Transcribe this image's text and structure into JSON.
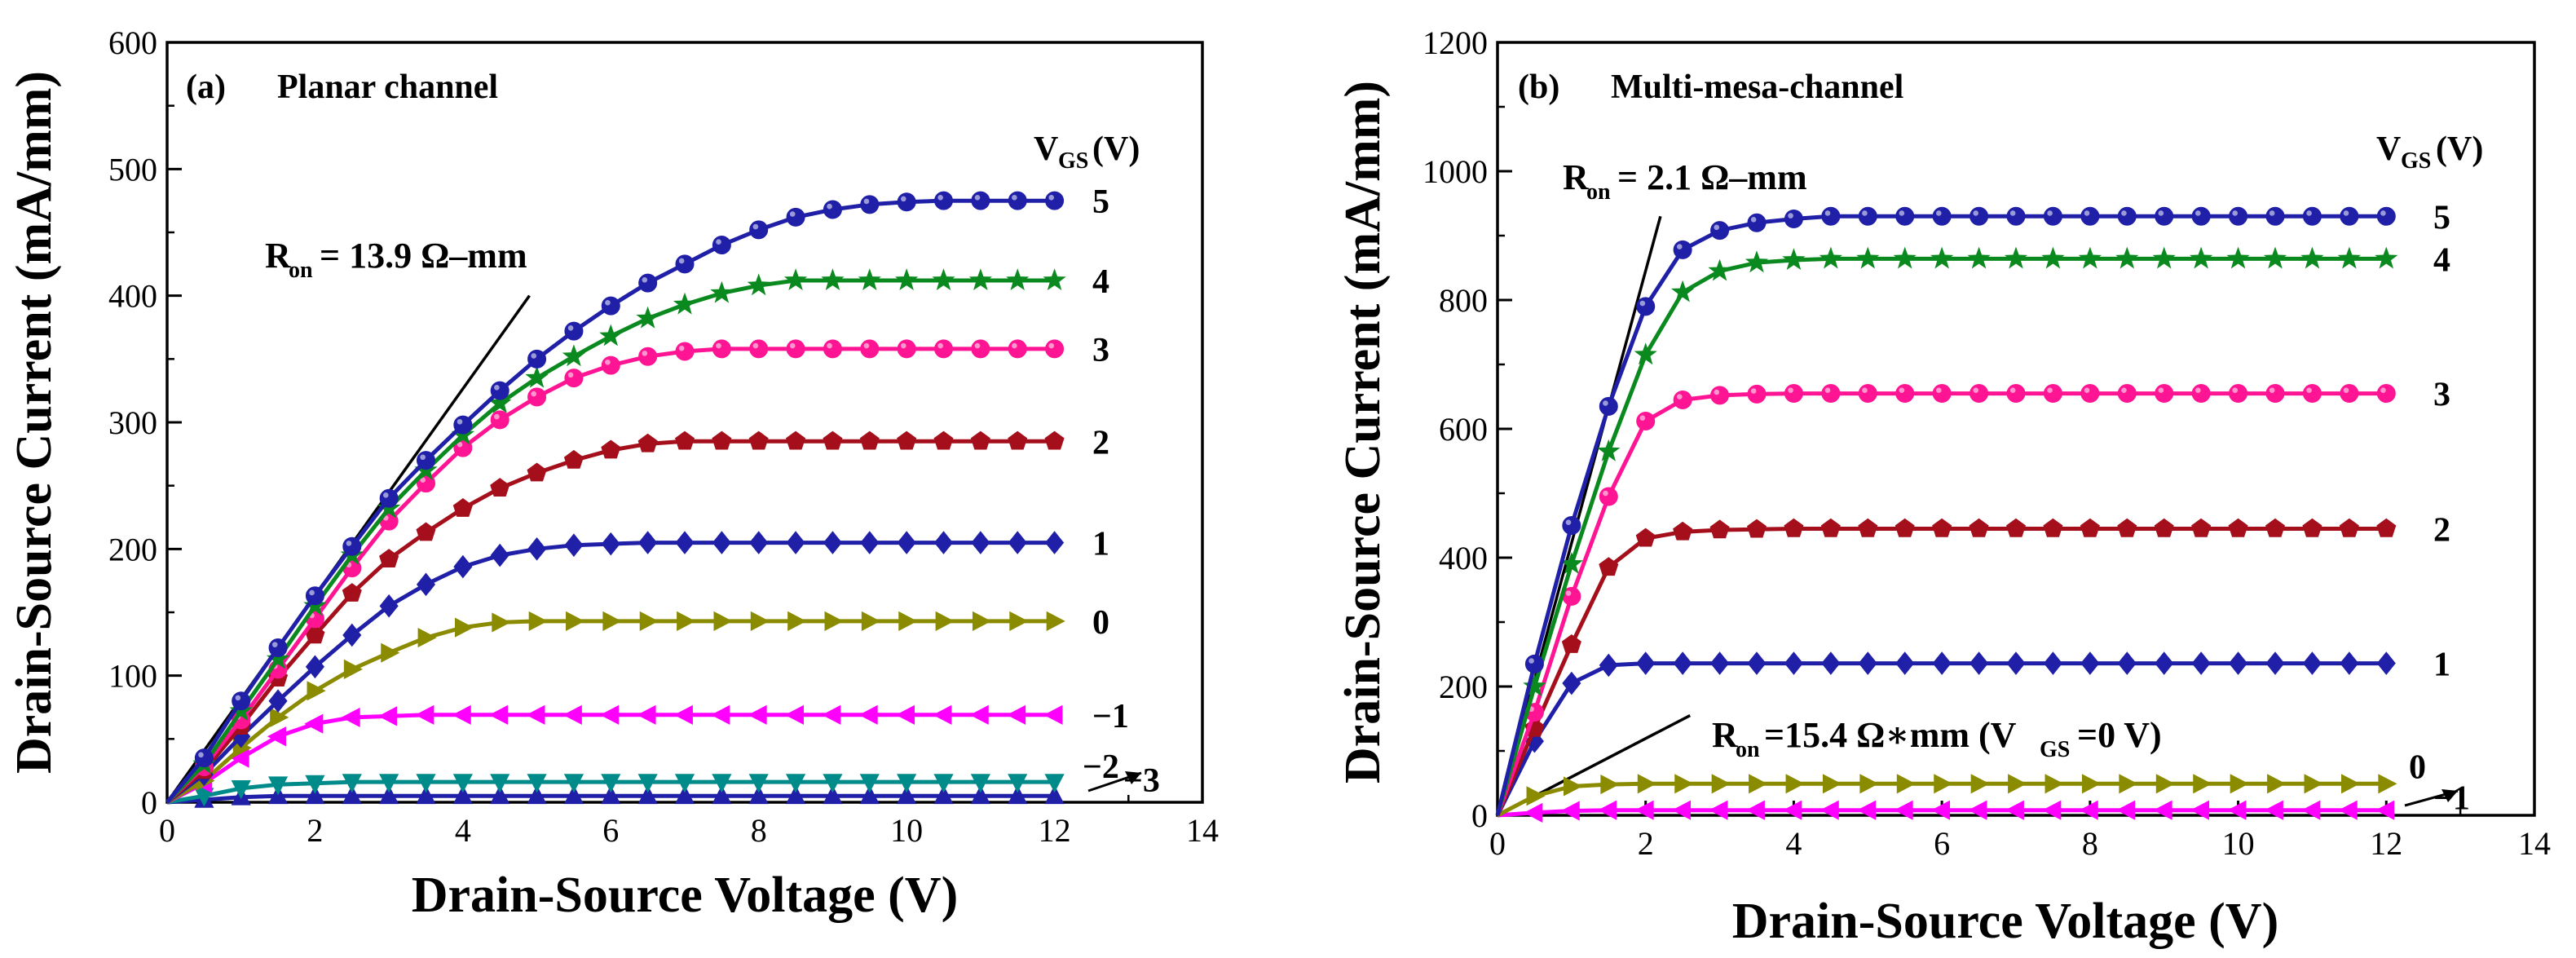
{
  "chart_data": [
    {
      "type": "line",
      "panel": "(a)",
      "title": "Planar channel",
      "xlabel": "Drain-Source Voltage (V)",
      "ylabel": "Drain-Source Current (mA/mm)",
      "xlim": [
        0,
        14
      ],
      "ylim": [
        0,
        600
      ],
      "xticks": [
        "0",
        "2",
        "4",
        "6",
        "8",
        "10",
        "12",
        "14"
      ],
      "yticks": [
        "0",
        "100",
        "200",
        "300",
        "400",
        "500",
        "600"
      ],
      "legend_title": "(V)",
      "legend_title_v": "V",
      "legend_title_sub": "GS",
      "annotation": {
        "label": "R",
        "sub": "on",
        "text": "= 13.9 Ω–mm",
        "line": [
          [
            0,
            0
          ],
          [
            4.9,
            400
          ]
        ]
      },
      "series": [
        {
          "name": "5",
          "label": "5",
          "marker": "circle",
          "color": "#1f1fa8",
          "x": [
            0,
            0.5,
            1,
            1.5,
            2,
            2.5,
            3,
            3.5,
            4,
            4.5,
            5,
            5.5,
            6,
            6.5,
            7,
            7.5,
            8,
            8.5,
            9,
            9.5,
            10,
            10.5,
            11,
            11.5,
            12
          ],
          "y": [
            0,
            35,
            80,
            122,
            163,
            202,
            240,
            270,
            298,
            325,
            350,
            372,
            392,
            410,
            425,
            440,
            452,
            462,
            468,
            472,
            474,
            475,
            475,
            475,
            475
          ]
        },
        {
          "name": "4",
          "label": "4",
          "marker": "star",
          "color": "#0a8a1e",
          "x": [
            0,
            0.5,
            1,
            1.5,
            2,
            2.5,
            3,
            3.5,
            4,
            4.5,
            5,
            5.5,
            6,
            6.5,
            7,
            7.5,
            8,
            8.5,
            9,
            9.5,
            10,
            10.5,
            11,
            11.5,
            12
          ],
          "y": [
            0,
            30,
            72,
            113,
            155,
            195,
            232,
            262,
            290,
            315,
            335,
            352,
            368,
            382,
            393,
            402,
            408,
            412,
            412,
            412,
            412,
            412,
            412,
            412,
            412
          ]
        },
        {
          "name": "3",
          "label": "3",
          "marker": "circle",
          "color": "#ff1493",
          "x": [
            0,
            0.5,
            1,
            1.5,
            2,
            2.5,
            3,
            3.5,
            4,
            4.5,
            5,
            5.5,
            6,
            6.5,
            7,
            7.5,
            8,
            8.5,
            9,
            9.5,
            10,
            10.5,
            11,
            11.5,
            12
          ],
          "y": [
            0,
            28,
            65,
            105,
            145,
            185,
            222,
            252,
            280,
            302,
            320,
            335,
            345,
            352,
            356,
            358,
            358,
            358,
            358,
            358,
            358,
            358,
            358,
            358,
            358
          ]
        },
        {
          "name": "2",
          "label": "2",
          "marker": "pentagon",
          "color": "#a50f1b",
          "x": [
            0,
            0.5,
            1,
            1.5,
            2,
            2.5,
            3,
            3.5,
            4,
            4.5,
            5,
            5.5,
            6,
            6.5,
            7,
            7.5,
            8,
            8.5,
            9,
            9.5,
            10,
            10.5,
            11,
            11.5,
            12
          ],
          "y": [
            0,
            25,
            60,
            98,
            132,
            165,
            192,
            213,
            232,
            248,
            260,
            270,
            278,
            283,
            285,
            285,
            285,
            285,
            285,
            285,
            285,
            285,
            285,
            285,
            285
          ]
        },
        {
          "name": "1",
          "label": "1",
          "marker": "diamond",
          "color": "#1f1fa8",
          "x": [
            0,
            0.5,
            1,
            1.5,
            2,
            2.5,
            3,
            3.5,
            4,
            4.5,
            5,
            5.5,
            6,
            6.5,
            7,
            7.5,
            8,
            8.5,
            9,
            9.5,
            10,
            10.5,
            11,
            11.5,
            12
          ],
          "y": [
            0,
            22,
            52,
            80,
            107,
            132,
            155,
            172,
            186,
            195,
            200,
            203,
            204,
            205,
            205,
            205,
            205,
            205,
            205,
            205,
            205,
            205,
            205,
            205,
            205
          ]
        },
        {
          "name": "0",
          "label": "0",
          "marker": "triangle-right",
          "color": "#8b8b00",
          "x": [
            0,
            0.5,
            1,
            1.5,
            2,
            2.5,
            3,
            3.5,
            4,
            4.5,
            5,
            5.5,
            6,
            6.5,
            7,
            7.5,
            8,
            8.5,
            9,
            9.5,
            10,
            10.5,
            11,
            11.5,
            12
          ],
          "y": [
            0,
            17,
            43,
            67,
            88,
            105,
            118,
            130,
            138,
            142,
            143,
            143,
            143,
            143,
            143,
            143,
            143,
            143,
            143,
            143,
            143,
            143,
            143,
            143,
            143
          ]
        },
        {
          "name": "-1",
          "label": "−1",
          "marker": "triangle-left",
          "color": "#ff00ff",
          "x": [
            0,
            0.5,
            1,
            1.5,
            2,
            2.5,
            3,
            3.5,
            4,
            4.5,
            5,
            5.5,
            6,
            6.5,
            7,
            7.5,
            8,
            8.5,
            9,
            9.5,
            10,
            10.5,
            11,
            11.5,
            12
          ],
          "y": [
            0,
            15,
            35,
            52,
            62,
            67,
            68,
            69,
            69,
            69,
            69,
            69,
            69,
            69,
            69,
            69,
            69,
            69,
            69,
            69,
            69,
            69,
            69,
            69,
            69
          ]
        },
        {
          "name": "-2",
          "label": "−2",
          "marker": "triangle-down",
          "color": "#008b8b",
          "x": [
            0,
            0.5,
            1,
            1.5,
            2,
            2.5,
            3,
            3.5,
            4,
            4.5,
            5,
            5.5,
            6,
            6.5,
            7,
            7.5,
            8,
            8.5,
            9,
            9.5,
            10,
            10.5,
            11,
            11.5,
            12
          ],
          "y": [
            0,
            5,
            11,
            14,
            15,
            16,
            16,
            16,
            16,
            16,
            16,
            16,
            16,
            16,
            16,
            16,
            16,
            16,
            16,
            16,
            16,
            16,
            16,
            16,
            16
          ]
        },
        {
          "name": "-3",
          "label": "−3",
          "marker": "triangle-up",
          "color": "#1f1fa8",
          "x": [
            0,
            0.5,
            1,
            1.5,
            2,
            2.5,
            3,
            3.5,
            4,
            4.5,
            5,
            5.5,
            6,
            6.5,
            7,
            7.5,
            8,
            8.5,
            9,
            9.5,
            10,
            10.5,
            11,
            11.5,
            12
          ],
          "y": [
            0,
            2,
            4,
            5,
            5,
            5,
            5,
            5,
            5,
            5,
            5,
            5,
            5,
            5,
            5,
            5,
            5,
            5,
            5,
            5,
            5,
            5,
            5,
            5,
            5
          ]
        }
      ]
    },
    {
      "type": "line",
      "panel": "(b)",
      "title": "Multi-mesa-channel",
      "xlabel": "Drain-Source Voltage (V)",
      "ylabel": "Drain-Source Current (mA/mm)",
      "xlim": [
        0,
        14
      ],
      "ylim": [
        0,
        1200
      ],
      "xticks": [
        "0",
        "2",
        "4",
        "6",
        "8",
        "10",
        "12",
        "14"
      ],
      "yticks": [
        "0",
        "200",
        "400",
        "600",
        "800",
        "1000",
        "1200"
      ],
      "legend_title": "(V)",
      "legend_title_v": "V",
      "legend_title_sub": "GS",
      "annotation": {
        "label": "R",
        "sub": "on",
        "text": "= 2.1 Ω–mm",
        "line": [
          [
            0,
            0
          ],
          [
            2.2,
            930
          ]
        ]
      },
      "annotation2": {
        "label": "R",
        "sub": "on",
        "text": "=15.4 Ω∗mm (V",
        "sub2": "GS",
        "text2": "=0 V)",
        "line": [
          [
            0,
            0
          ],
          [
            2.6,
            155
          ]
        ]
      },
      "series": [
        {
          "name": "5",
          "label": "5",
          "marker": "circle",
          "color": "#1f1fa8",
          "x": [
            0,
            0.5,
            1,
            1.5,
            2,
            2.5,
            3,
            3.5,
            4,
            4.5,
            5,
            5.5,
            6,
            6.5,
            7,
            7.5,
            8,
            8.5,
            9,
            9.5,
            10,
            10.5,
            11,
            11.5,
            12
          ],
          "y": [
            0,
            235,
            450,
            635,
            790,
            878,
            908,
            920,
            926,
            930,
            930,
            930,
            930,
            930,
            930,
            930,
            930,
            930,
            930,
            930,
            930,
            930,
            930,
            930,
            930
          ]
        },
        {
          "name": "4",
          "label": "4",
          "marker": "star",
          "color": "#0a8a1e",
          "x": [
            0,
            0.5,
            1,
            1.5,
            2,
            2.5,
            3,
            3.5,
            4,
            4.5,
            5,
            5.5,
            6,
            6.5,
            7,
            7.5,
            8,
            8.5,
            9,
            9.5,
            10,
            10.5,
            11,
            11.5,
            12
          ],
          "y": [
            0,
            200,
            390,
            565,
            715,
            812,
            845,
            858,
            862,
            864,
            864,
            864,
            864,
            864,
            864,
            864,
            864,
            864,
            864,
            864,
            864,
            864,
            864,
            864,
            864
          ]
        },
        {
          "name": "3",
          "label": "3",
          "marker": "circle",
          "color": "#ff1493",
          "x": [
            0,
            0.5,
            1,
            1.5,
            2,
            2.5,
            3,
            3.5,
            4,
            4.5,
            5,
            5.5,
            6,
            6.5,
            7,
            7.5,
            8,
            8.5,
            9,
            9.5,
            10,
            10.5,
            11,
            11.5,
            12
          ],
          "y": [
            0,
            160,
            340,
            495,
            612,
            645,
            652,
            654,
            655,
            655,
            655,
            655,
            655,
            655,
            655,
            655,
            655,
            655,
            655,
            655,
            655,
            655,
            655,
            655,
            655
          ]
        },
        {
          "name": "2",
          "label": "2",
          "marker": "pentagon",
          "color": "#a50f1b",
          "x": [
            0,
            0.5,
            1,
            1.5,
            2,
            2.5,
            3,
            3.5,
            4,
            4.5,
            5,
            5.5,
            6,
            6.5,
            7,
            7.5,
            8,
            8.5,
            9,
            9.5,
            10,
            10.5,
            11,
            11.5,
            12
          ],
          "y": [
            0,
            135,
            265,
            385,
            430,
            440,
            443,
            444,
            445,
            445,
            445,
            445,
            445,
            445,
            445,
            445,
            445,
            445,
            445,
            445,
            445,
            445,
            445,
            445,
            445
          ]
        },
        {
          "name": "1",
          "label": "1",
          "marker": "diamond",
          "color": "#1f1fa8",
          "x": [
            0,
            0.5,
            1,
            1.5,
            2,
            2.5,
            3,
            3.5,
            4,
            4.5,
            5,
            5.5,
            6,
            6.5,
            7,
            7.5,
            8,
            8.5,
            9,
            9.5,
            10,
            10.5,
            11,
            11.5,
            12
          ],
          "y": [
            0,
            115,
            205,
            233,
            236,
            236,
            236,
            236,
            236,
            236,
            236,
            236,
            236,
            236,
            236,
            236,
            236,
            236,
            236,
            236,
            236,
            236,
            236,
            236,
            236
          ]
        },
        {
          "name": "0",
          "label": "0",
          "marker": "triangle-right",
          "color": "#8b8b00",
          "x": [
            0,
            0.5,
            1,
            1.5,
            2,
            2.5,
            3,
            3.5,
            4,
            4.5,
            5,
            5.5,
            6,
            6.5,
            7,
            7.5,
            8,
            8.5,
            9,
            9.5,
            10,
            10.5,
            11,
            11.5,
            12
          ],
          "y": [
            0,
            30,
            45,
            48,
            49,
            49,
            49,
            49,
            49,
            49,
            49,
            49,
            49,
            49,
            49,
            49,
            49,
            49,
            49,
            49,
            49,
            49,
            49,
            49,
            49
          ]
        },
        {
          "name": "-1",
          "label": "−1",
          "marker": "triangle-left",
          "color": "#ff00ff",
          "x": [
            0,
            0.5,
            1,
            1.5,
            2,
            2.5,
            3,
            3.5,
            4,
            4.5,
            5,
            5.5,
            6,
            6.5,
            7,
            7.5,
            8,
            8.5,
            9,
            9.5,
            10,
            10.5,
            11,
            11.5,
            12
          ],
          "y": [
            0,
            4,
            7,
            8,
            8,
            8,
            8,
            8,
            8,
            8,
            8,
            8,
            8,
            8,
            8,
            8,
            8,
            8,
            8,
            8,
            8,
            8,
            8,
            8,
            8
          ]
        }
      ]
    }
  ]
}
